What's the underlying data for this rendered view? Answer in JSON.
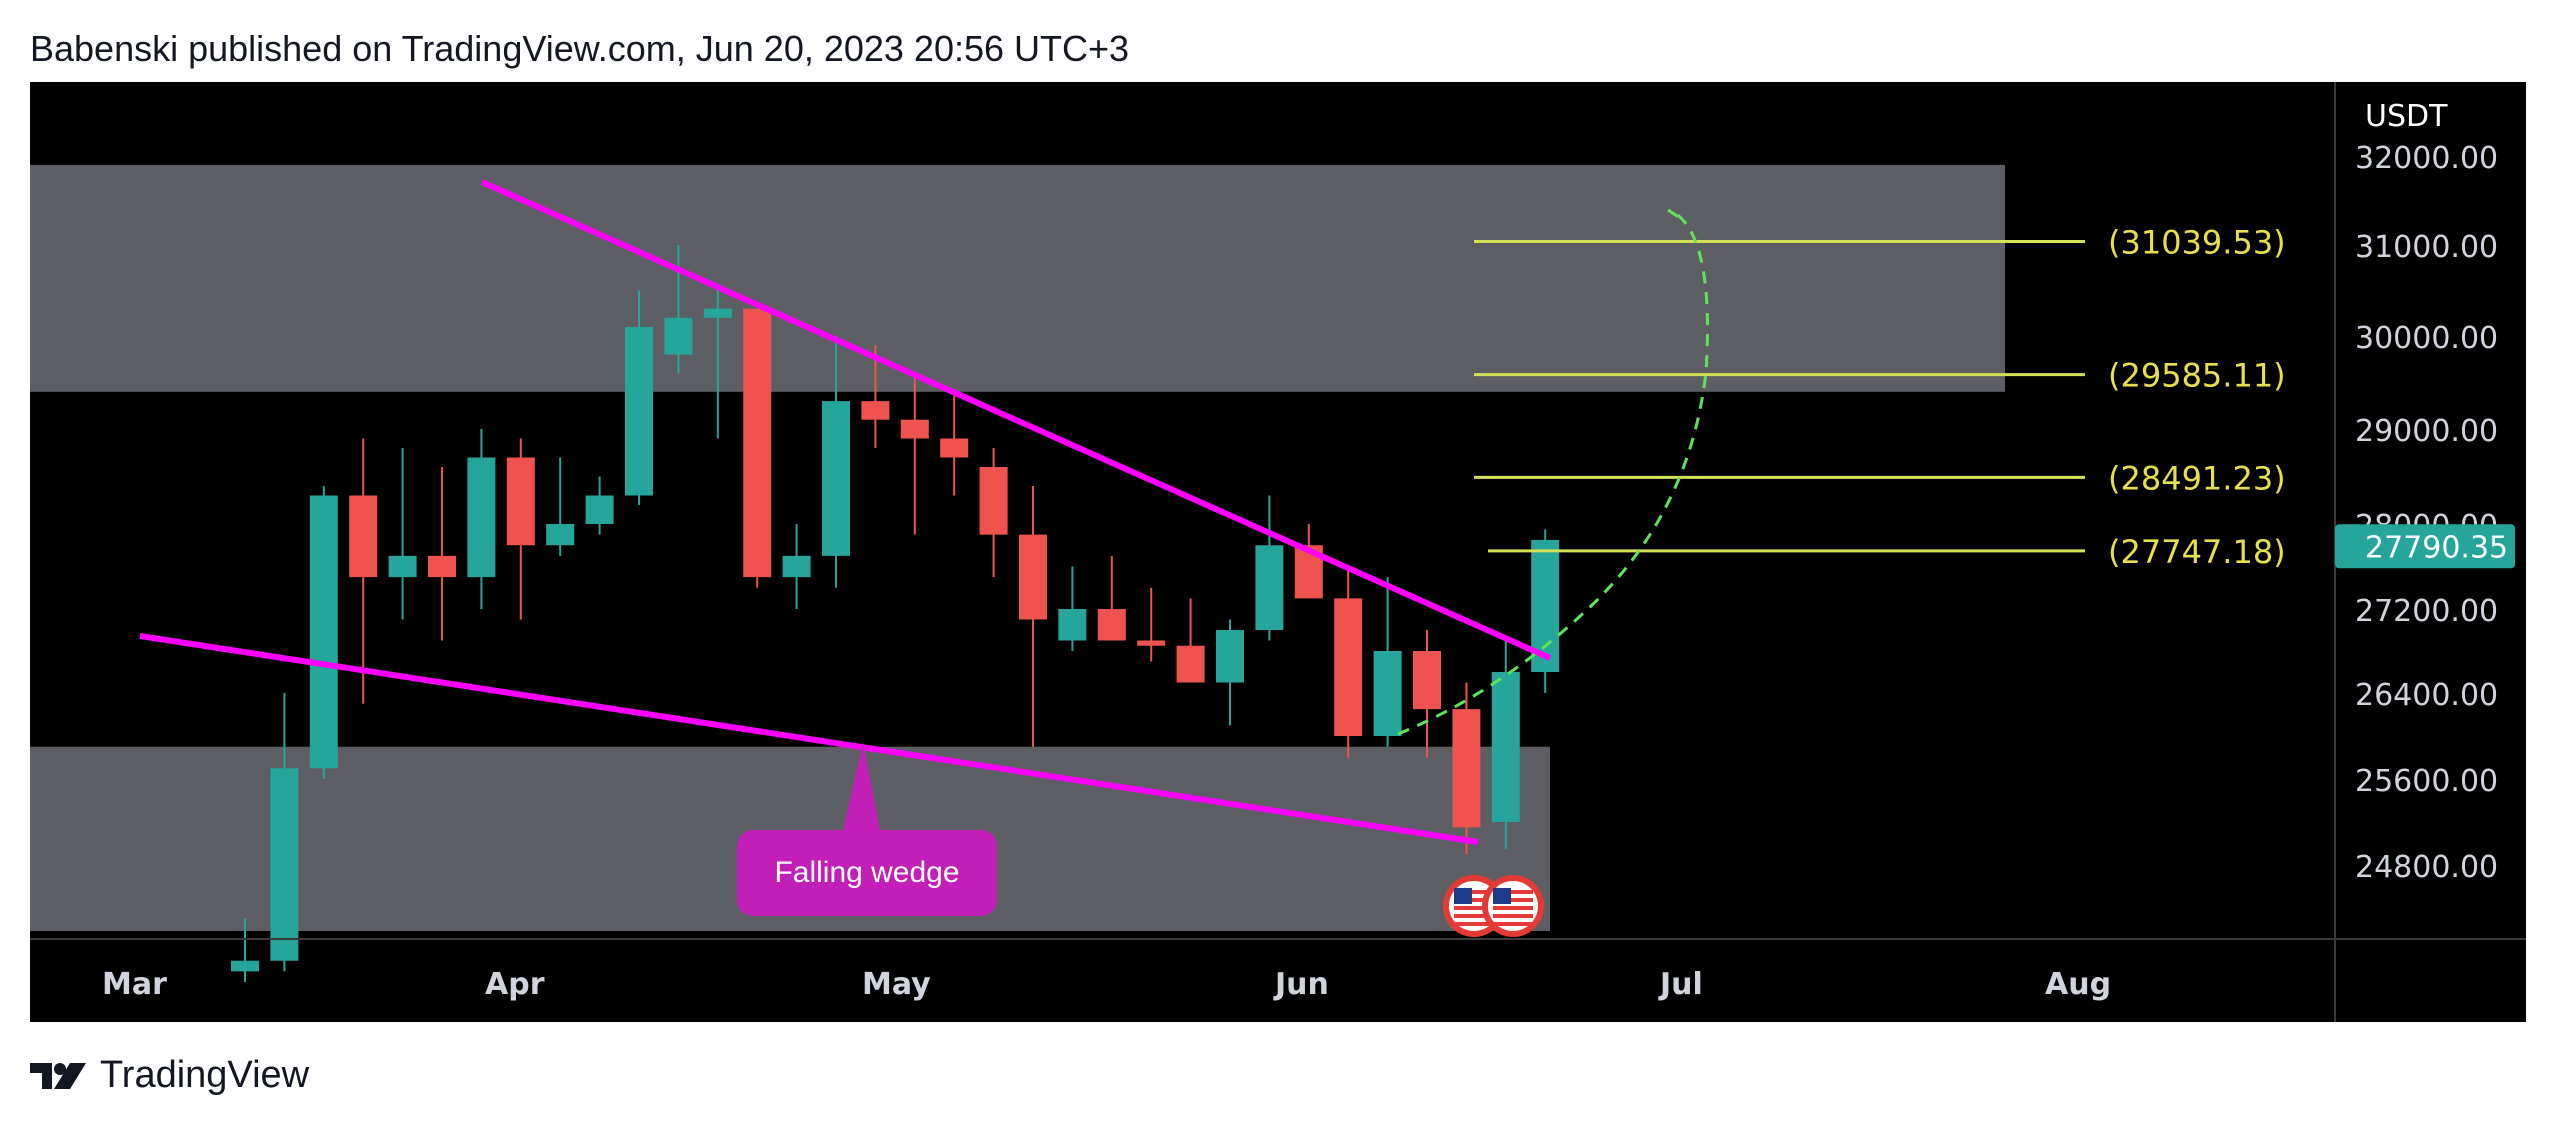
{
  "header": {
    "title": "Babenski published on TradingView.com, Jun 20, 2023 20:56 UTC+3"
  },
  "footer": {
    "brand": "TradingView",
    "logo": "tradingview-logo-icon"
  },
  "colors": {
    "up": "#26a69a",
    "down": "#ef5350",
    "wedge": "#ff00ff",
    "target": "#d4e157",
    "target_text": "#e6e04a",
    "zone": "#5d5e63",
    "projection": "#5fe35a",
    "callout": "#c11fb8",
    "price_tag": "#26a69a"
  },
  "chart_data": {
    "type": "candlestick",
    "symbol_currency": "USDT",
    "price_axis_labels": [
      "32000.00",
      "31000.00",
      "30000.00",
      "29000.00",
      "28000.00",
      "27200.00",
      "26400.00",
      "25600.00",
      "24800.00"
    ],
    "time_axis_labels": [
      "Mar",
      "Apr",
      "May",
      "Jun",
      "Jul",
      "Aug"
    ],
    "current_price": "27790.35",
    "candles": [
      {
        "o": 23800,
        "h": 24300,
        "l": 23700,
        "c": 23900
      },
      {
        "o": 23900,
        "h": 26400,
        "l": 23800,
        "c": 25700
      },
      {
        "o": 25700,
        "h": 28400,
        "l": 25600,
        "c": 28300
      },
      {
        "o": 28300,
        "h": 28900,
        "l": 26300,
        "c": 27500
      },
      {
        "o": 27500,
        "h": 28800,
        "l": 27100,
        "c": 27700
      },
      {
        "o": 27700,
        "h": 28600,
        "l": 26900,
        "c": 27500
      },
      {
        "o": 27500,
        "h": 29000,
        "l": 27200,
        "c": 28700
      },
      {
        "o": 28700,
        "h": 28900,
        "l": 27100,
        "c": 27800
      },
      {
        "o": 27800,
        "h": 28700,
        "l": 27700,
        "c": 28000
      },
      {
        "o": 28000,
        "h": 28500,
        "l": 27900,
        "c": 28300
      },
      {
        "o": 28300,
        "h": 30500,
        "l": 28200,
        "c": 30100
      },
      {
        "o": 29800,
        "h": 31000,
        "l": 29600,
        "c": 30200
      },
      {
        "o": 30200,
        "h": 30500,
        "l": 28900,
        "c": 30300
      },
      {
        "o": 30300,
        "h": 30300,
        "l": 27400,
        "c": 27500
      },
      {
        "o": 27500,
        "h": 28000,
        "l": 27200,
        "c": 27700
      },
      {
        "o": 27700,
        "h": 30000,
        "l": 27400,
        "c": 29300
      },
      {
        "o": 29300,
        "h": 29900,
        "l": 28800,
        "c": 29100
      },
      {
        "o": 29100,
        "h": 29600,
        "l": 27900,
        "c": 28900
      },
      {
        "o": 28900,
        "h": 29400,
        "l": 28300,
        "c": 28700
      },
      {
        "o": 28600,
        "h": 28800,
        "l": 27500,
        "c": 27900
      },
      {
        "o": 27900,
        "h": 28400,
        "l": 25900,
        "c": 27100
      },
      {
        "o": 26900,
        "h": 27600,
        "l": 26800,
        "c": 27200
      },
      {
        "o": 27200,
        "h": 27700,
        "l": 26900,
        "c": 26900
      },
      {
        "o": 26900,
        "h": 27400,
        "l": 26700,
        "c": 26850
      },
      {
        "o": 26850,
        "h": 27300,
        "l": 26500,
        "c": 26500
      },
      {
        "o": 26500,
        "h": 27100,
        "l": 26100,
        "c": 27000
      },
      {
        "o": 27000,
        "h": 28300,
        "l": 26900,
        "c": 27800
      },
      {
        "o": 27800,
        "h": 28000,
        "l": 27300,
        "c": 27300
      },
      {
        "o": 27300,
        "h": 27600,
        "l": 25800,
        "c": 26000
      },
      {
        "o": 26000,
        "h": 27500,
        "l": 25900,
        "c": 26800
      },
      {
        "o": 26800,
        "h": 27000,
        "l": 25800,
        "c": 26250
      },
      {
        "o": 26250,
        "h": 26500,
        "l": 24900,
        "c": 25150
      },
      {
        "o": 25200,
        "h": 26900,
        "l": 24950,
        "c": 26600
      },
      {
        "o": 26600,
        "h": 27950,
        "l": 26400,
        "c": 27850
      }
    ],
    "target_levels": [
      {
        "label": "(31039.53)",
        "price": 31039.53
      },
      {
        "label": "(29585.11)",
        "price": 29585.11
      },
      {
        "label": "(28491.23)",
        "price": 28491.23
      },
      {
        "label": "(27747.18)",
        "price": 27747.18
      }
    ],
    "annotations": [
      {
        "text": "Falling wedge",
        "type": "callout"
      },
      {
        "type": "wedge-upper-trendline"
      },
      {
        "type": "wedge-lower-trendline"
      },
      {
        "type": "projected-path-dashed"
      },
      {
        "type": "supply-zone",
        "from": 29400,
        "to": 31900
      },
      {
        "type": "demand-zone",
        "from": 24000,
        "to": 25900
      }
    ],
    "event_markers": [
      "us-flag-icon",
      "us-flag-icon"
    ]
  }
}
